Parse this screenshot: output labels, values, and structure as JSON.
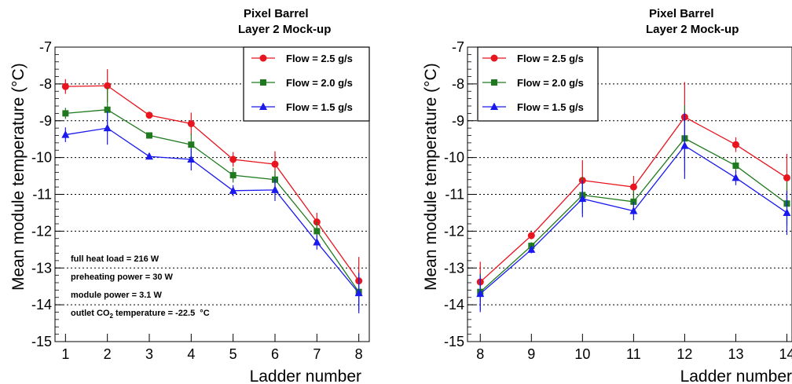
{
  "chart_data": [
    {
      "type": "line",
      "title": "Pixel Barrel",
      "subtitle": "Layer 2 Mock-up",
      "xlabel": "Ladder number",
      "ylabel": "Mean module temperature (°C)",
      "xlim": [
        0.75,
        8.25
      ],
      "ylim": [
        -15,
        -7
      ],
      "x_ticks": [
        1,
        2,
        3,
        4,
        5,
        6,
        7,
        8
      ],
      "y_ticks": [
        -15,
        -14,
        -13,
        -12,
        -11,
        -10,
        -9,
        -8,
        -7
      ],
      "grid": "horizontal dotted",
      "legend_position": "top-right",
      "series": [
        {
          "name": "Flow = 2.5 g/s",
          "color": "#e8141e",
          "marker": "circle",
          "x": [
            1,
            2,
            3,
            4,
            5,
            6,
            7,
            8
          ],
          "y": [
            -8.07,
            -8.05,
            -8.85,
            -9.08,
            -10.05,
            -10.18,
            -11.75,
            -13.35
          ],
          "err": [
            0.2,
            0.45,
            0.05,
            0.3,
            0.2,
            0.35,
            0.25,
            0.65
          ]
        },
        {
          "name": "Flow = 2.0 g/s",
          "color": "#1f7a1f",
          "marker": "square",
          "x": [
            1,
            2,
            3,
            4,
            5,
            6,
            7,
            8
          ],
          "y": [
            -8.8,
            -8.7,
            -9.4,
            -9.65,
            -10.48,
            -10.6,
            -12.0,
            -13.65
          ],
          "err": [
            0.15,
            0.6,
            0.05,
            0.3,
            0.2,
            0.25,
            0.25,
            0.5
          ]
        },
        {
          "name": "Flow = 1.5 g/s",
          "color": "#1a1aee",
          "marker": "triangle",
          "x": [
            1,
            2,
            3,
            4,
            5,
            6,
            7,
            8
          ],
          "y": [
            -9.38,
            -9.2,
            -9.97,
            -10.05,
            -10.9,
            -10.88,
            -12.3,
            -13.68
          ],
          "err": [
            0.2,
            0.45,
            0.05,
            0.3,
            0.15,
            0.3,
            0.2,
            0.55
          ]
        }
      ],
      "annotations": [
        "full heat load = 216 W",
        "preheating power = 30 W",
        "module power = 3.1 W",
        "outlet CO",
        "2",
        " temperature = -22.5  °C"
      ]
    },
    {
      "type": "line",
      "title": "Pixel Barrel",
      "subtitle": "Layer 2 Mock-up",
      "xlabel": "Ladder number",
      "ylabel": "Mean module temperature (°C)",
      "xlim": [
        7.75,
        14.1
      ],
      "ylim": [
        -15,
        -7
      ],
      "x_ticks": [
        8,
        9,
        10,
        11,
        12,
        13,
        14
      ],
      "y_ticks": [
        -15,
        -14,
        -13,
        -12,
        -11,
        -10,
        -9,
        -8,
        -7
      ],
      "grid": "horizontal dotted",
      "legend_position": "top-left",
      "series": [
        {
          "name": "Flow = 2.5 g/s",
          "color": "#e8141e",
          "marker": "circle",
          "x": [
            8,
            9,
            10,
            11,
            12,
            13,
            14
          ],
          "y": [
            -13.38,
            -12.12,
            -10.62,
            -10.8,
            -8.9,
            -9.65,
            -10.55
          ],
          "err": [
            0.55,
            0.1,
            0.55,
            0.3,
            0.95,
            0.2,
            0.65
          ]
        },
        {
          "name": "Flow = 2.0 g/s",
          "color": "#1f7a1f",
          "marker": "square",
          "x": [
            8,
            9,
            10,
            11,
            12,
            13,
            14
          ],
          "y": [
            -13.65,
            -12.4,
            -11.02,
            -11.2,
            -9.48,
            -10.22,
            -11.25
          ],
          "err": [
            0.5,
            0.1,
            0.5,
            0.3,
            0.9,
            0.2,
            0.6
          ]
        },
        {
          "name": "Flow = 1.5 g/s",
          "color": "#1a1aee",
          "marker": "triangle",
          "x": [
            8,
            9,
            10,
            11,
            12,
            13,
            14
          ],
          "y": [
            -13.7,
            -12.5,
            -11.12,
            -11.45,
            -9.68,
            -10.55,
            -11.5
          ],
          "err": [
            0.5,
            0.1,
            0.5,
            0.25,
            0.9,
            0.2,
            0.6
          ]
        }
      ]
    }
  ]
}
